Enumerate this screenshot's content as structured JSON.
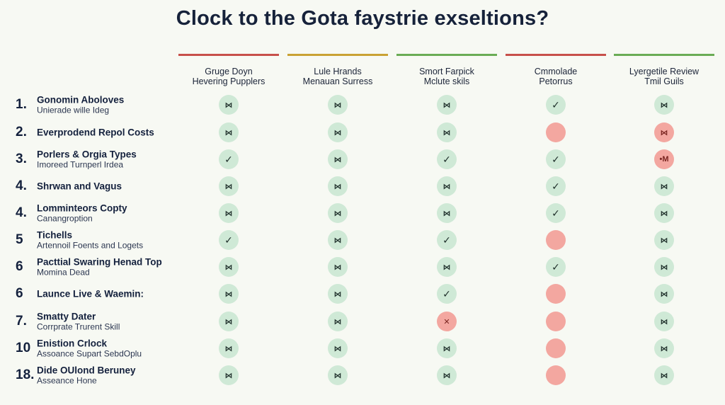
{
  "title": "Clock to the Gota faystrie exseltions?",
  "columns": [
    {
      "line1": "Gruge Doyn",
      "line2": "Hevering Pupplers",
      "color": "#c7504a"
    },
    {
      "line1": "Lule Hrands",
      "line2": "Menauan Surress",
      "color": "#c9a233"
    },
    {
      "line1": "Smort Farpick",
      "line2": "Mclute skils",
      "color": "#6aac55"
    },
    {
      "line1": "Cmmolade",
      "line2": "Petorrus",
      "color": "#c7504a"
    },
    {
      "line1": "Lyergetile Review",
      "line2": "Tmil Guils",
      "color": "#6aac55"
    }
  ],
  "icons": {
    "cross": "⋈",
    "check": "✓",
    "empty": "",
    "x": "✕",
    "m": "•M"
  },
  "colors": {
    "green": "#cfe9d6",
    "red": "#f3a7a0"
  },
  "rows": [
    {
      "num": "1.",
      "main": "Gonomin Aboloves",
      "sub": "Unierade wille Ideg",
      "cells": [
        [
          "green",
          "cross"
        ],
        [
          "green",
          "cross"
        ],
        [
          "green",
          "cross"
        ],
        [
          "green",
          "check"
        ],
        [
          "green",
          "cross"
        ]
      ]
    },
    {
      "num": "2.",
      "main": "Everprodend Repol Costs",
      "sub": "",
      "cells": [
        [
          "green",
          "cross"
        ],
        [
          "green",
          "cross"
        ],
        [
          "green",
          "cross"
        ],
        [
          "red",
          "empty"
        ],
        [
          "red",
          "cross"
        ]
      ]
    },
    {
      "num": "3.",
      "main": "Porlers & Orgia Types",
      "sub": "Imoreed Turnperl Irdea",
      "cells": [
        [
          "green",
          "check"
        ],
        [
          "green",
          "cross"
        ],
        [
          "green",
          "check"
        ],
        [
          "green",
          "check"
        ],
        [
          "red",
          "m"
        ]
      ]
    },
    {
      "num": "4.",
      "main": "Shrwan and Vagus",
      "sub": "",
      "cells": [
        [
          "green",
          "cross"
        ],
        [
          "green",
          "cross"
        ],
        [
          "green",
          "cross"
        ],
        [
          "green",
          "check"
        ],
        [
          "green",
          "cross"
        ]
      ]
    },
    {
      "num": "4.",
      "main": "Lomminteors Copty",
      "sub": "Canangroption",
      "cells": [
        [
          "green",
          "cross"
        ],
        [
          "green",
          "cross"
        ],
        [
          "green",
          "cross"
        ],
        [
          "green",
          "check"
        ],
        [
          "green",
          "cross"
        ]
      ]
    },
    {
      "num": "5",
      "main": "Tichells",
      "sub": "Artennoil Foents and Logets",
      "cells": [
        [
          "green",
          "check"
        ],
        [
          "green",
          "cross"
        ],
        [
          "green",
          "check"
        ],
        [
          "red",
          "empty"
        ],
        [
          "green",
          "cross"
        ]
      ]
    },
    {
      "num": "6",
      "main": "Pacttial Swaring Henad Top",
      "sub": "Momina Dead",
      "cells": [
        [
          "green",
          "cross"
        ],
        [
          "green",
          "cross"
        ],
        [
          "green",
          "cross"
        ],
        [
          "green",
          "check"
        ],
        [
          "green",
          "cross"
        ]
      ]
    },
    {
      "num": "6",
      "main": "Launce Live & Waemin:",
      "sub": "",
      "cells": [
        [
          "green",
          "cross"
        ],
        [
          "green",
          "cross"
        ],
        [
          "green",
          "check"
        ],
        [
          "red",
          "empty"
        ],
        [
          "green",
          "cross"
        ]
      ]
    },
    {
      "num": "7.",
      "main": "Smatty Dater",
      "sub": "Corrprate Trurent Skill",
      "cells": [
        [
          "green",
          "cross"
        ],
        [
          "green",
          "cross"
        ],
        [
          "red",
          "x"
        ],
        [
          "red",
          "empty"
        ],
        [
          "green",
          "cross"
        ]
      ]
    },
    {
      "num": "10",
      "main": "Enistion Crlock",
      "sub": "Assoance Supart SebdOplu",
      "cells": [
        [
          "green",
          "cross"
        ],
        [
          "green",
          "cross"
        ],
        [
          "green",
          "cross"
        ],
        [
          "red",
          "empty"
        ],
        [
          "green",
          "cross"
        ]
      ]
    },
    {
      "num": "18.",
      "main": "Dide OUlond Beruney",
      "sub": "Asseance Hone",
      "cells": [
        [
          "green",
          "cross"
        ],
        [
          "green",
          "cross"
        ],
        [
          "green",
          "cross"
        ],
        [
          "red",
          "empty"
        ],
        [
          "green",
          "cross"
        ]
      ]
    }
  ]
}
